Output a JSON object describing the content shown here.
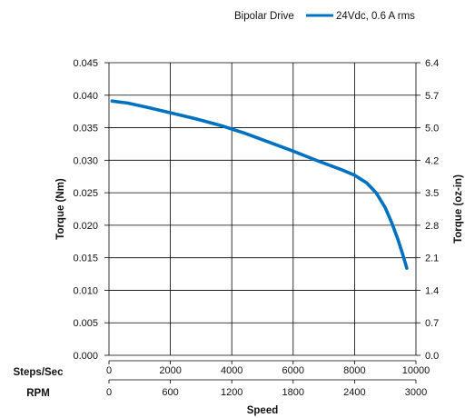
{
  "legend": {
    "drive_label": "Bipolar Drive",
    "series_label": "24Vdc, 0.6 A rms"
  },
  "chart_data": {
    "type": "line",
    "xlabel": "Speed",
    "ylabel_left": "Torque (Nm)",
    "ylabel_right": "Torque (oz-in)",
    "x_axis_primary": {
      "label": "Steps/Sec",
      "ticks": [
        "0",
        "2000",
        "4000",
        "6000",
        "8000",
        "10000"
      ],
      "range": [
        0,
        10000
      ]
    },
    "x_axis_secondary": {
      "label": "RPM",
      "ticks": [
        "0",
        "600",
        "1200",
        "1800",
        "2400",
        "3000"
      ],
      "range": [
        0,
        3000
      ]
    },
    "y_left": {
      "ticks": [
        "0.000",
        "0.005",
        "0.010",
        "0.015",
        "0.020",
        "0.025",
        "0.030",
        "0.035",
        "0.040",
        "0.045"
      ],
      "range": [
        0,
        0.045
      ]
    },
    "y_right": {
      "ticks": [
        "0.0",
        "0.7",
        "1.4",
        "2.1",
        "2.8",
        "3.5",
        "4.2",
        "5.0",
        "5.7",
        "6.4"
      ]
    },
    "grid": true,
    "legend_position": "top-right",
    "series": [
      {
        "name": "24Vdc, 0.6 A rms",
        "color": "#0070c0",
        "x": [
          100,
          600,
          1200,
          2000,
          2800,
          3600,
          4400,
          5200,
          6000,
          6800,
          7600,
          8000,
          8400,
          8700,
          9000,
          9200,
          9400,
          9550,
          9700
        ],
        "y": [
          0.0391,
          0.0388,
          0.0382,
          0.0373,
          0.0364,
          0.0354,
          0.0342,
          0.0328,
          0.0314,
          0.0299,
          0.0285,
          0.0277,
          0.0265,
          0.025,
          0.0227,
          0.0205,
          0.018,
          0.0158,
          0.0134
        ]
      }
    ]
  }
}
